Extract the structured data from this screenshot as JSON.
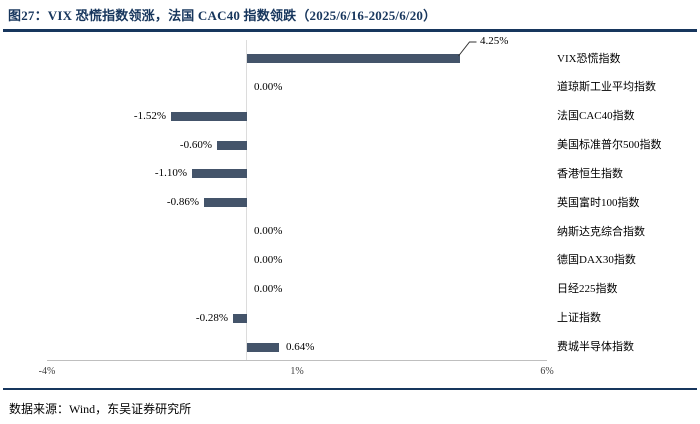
{
  "header": {
    "title": "图27：VIX 恐慌指数领涨，法国 CAC40 指数领跌（2025/6/16-2025/6/20）"
  },
  "footer": {
    "source": "数据来源：Wind，东吴证券研究所"
  },
  "colors": {
    "accent_navy": "#17365D",
    "bar": "#44546A",
    "axis_line": "#BFBFBF"
  },
  "chart_data": {
    "type": "bar",
    "orientation": "horizontal",
    "title": "图27：VIX 恐慌指数领涨，法国 CAC40 指数领跌（2025/6/16-2025/6/20）",
    "categories": [
      "VIX恐慌指数",
      "道琼斯工业平均指数",
      "法国CAC40指数",
      "美国标准普尔500指数",
      "香港恒生指数",
      "英国富时100指数",
      "纳斯达克综合指数",
      "德国DAX30指数",
      "日经225指数",
      "上证指数",
      "费城半导体指数"
    ],
    "values": [
      4.25,
      0,
      -1.52,
      -0.6,
      -1.1,
      -0.86,
      0,
      0,
      0,
      -0.28,
      0.64
    ],
    "labels": [
      "4.25%",
      "0.00%",
      "-1.52%",
      "-0.60%",
      "-1.10%",
      "-0.86%",
      "0.00%",
      "0.00%",
      "0.00%",
      "-0.28%",
      "0.64%"
    ],
    "xlim": [
      -4,
      6
    ],
    "xticks": [
      "-4%",
      "1%",
      "6%"
    ],
    "xtick_values": [
      -4,
      1,
      6
    ],
    "bar_color": "#44546A",
    "axis_color": "#BFBFBF",
    "grid": false,
    "legend": false,
    "category_side": "right",
    "value_label_position": "outside",
    "callout_index": 0,
    "source": "数据来源：Wind，东吴证券研究所"
  }
}
